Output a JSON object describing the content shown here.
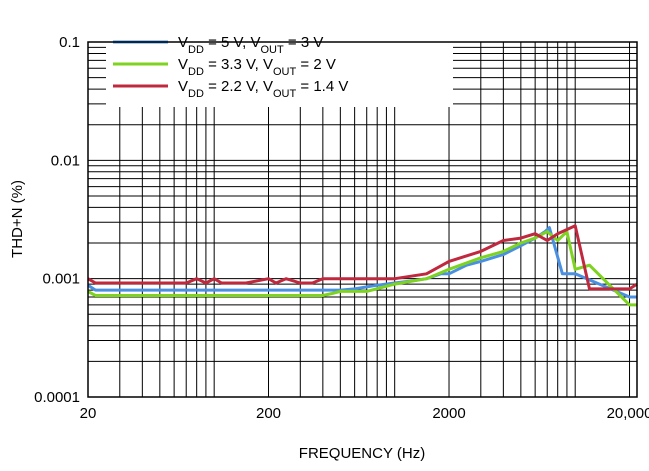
{
  "chart_data": {
    "type": "line",
    "title": "",
    "xlabel": "FREQUENCY (Hz)",
    "ylabel": "THD+N (%)",
    "x_scale": "log",
    "y_scale": "log",
    "xlim": [
      20,
      22000
    ],
    "ylim": [
      0.0001,
      0.1
    ],
    "grid": true,
    "legend_position": "top-left",
    "x_ticks": [
      {
        "value": 20,
        "label": "20"
      },
      {
        "value": 200,
        "label": "200"
      },
      {
        "value": 2000,
        "label": "2000"
      },
      {
        "value": 20000,
        "label": "20,000"
      }
    ],
    "y_ticks": [
      {
        "value": 0.1,
        "label": "0.1"
      },
      {
        "value": 0.01,
        "label": "0.01"
      },
      {
        "value": 0.001,
        "label": "0.001"
      },
      {
        "value": 0.0001,
        "label": "0.0001"
      }
    ],
    "series": [
      {
        "name_parts": [
          {
            "t": "V",
            "sub": false
          },
          {
            "t": "DD",
            "sub": true
          },
          {
            "t": " = 5 V, V",
            "sub": false
          },
          {
            "t": "OUT",
            "sub": true
          },
          {
            "t": " = 3 V",
            "sub": false
          }
        ],
        "color": "#4a90e2",
        "x": [
          20,
          22,
          30,
          50,
          100,
          200,
          400,
          500,
          600,
          800,
          1000,
          1200,
          1500,
          1800,
          2000,
          2500,
          3000,
          4000,
          5000,
          6000,
          6800,
          7200,
          8500,
          10000,
          20000,
          22000
        ],
        "y": [
          0.00088,
          0.0008,
          0.0008,
          0.0008,
          0.0008,
          0.0008,
          0.0008,
          0.0008,
          0.00082,
          0.00088,
          0.00092,
          0.00095,
          0.001,
          0.0011,
          0.0011,
          0.0013,
          0.0014,
          0.0016,
          0.0019,
          0.0022,
          0.0025,
          0.0027,
          0.0011,
          0.0011,
          0.0007,
          0.0007
        ]
      },
      {
        "name_parts": [
          {
            "t": "V",
            "sub": false
          },
          {
            "t": "DD",
            "sub": true
          },
          {
            "t": " = 3.3 V, V",
            "sub": false
          },
          {
            "t": "OUT",
            "sub": true
          },
          {
            "t": " = 2 V",
            "sub": false
          }
        ],
        "color": "#7ed321",
        "x": [
          20,
          22,
          30,
          50,
          100,
          200,
          400,
          450,
          500,
          700,
          1000,
          1500,
          2000,
          3000,
          4000,
          5000,
          6000,
          7000,
          8000,
          9000,
          10000,
          12000,
          20000,
          22000
        ],
        "y": [
          0.00078,
          0.00072,
          0.00072,
          0.00072,
          0.00072,
          0.00072,
          0.00072,
          0.00075,
          0.00078,
          0.00078,
          0.0009,
          0.001,
          0.0012,
          0.0015,
          0.0017,
          0.002,
          0.0022,
          0.0025,
          0.0021,
          0.0025,
          0.0012,
          0.0013,
          0.0006,
          0.0006
        ]
      },
      {
        "name_parts": [
          {
            "t": "V",
            "sub": false
          },
          {
            "t": "DD",
            "sub": true
          },
          {
            "t": " = 2.2 V, V",
            "sub": false
          },
          {
            "t": "OUT",
            "sub": true
          },
          {
            "t": " = 1.4 V",
            "sub": false
          }
        ],
        "color": "#c0283e",
        "x": [
          20,
          22,
          30,
          50,
          70,
          80,
          90,
          100,
          110,
          130,
          150,
          200,
          220,
          250,
          300,
          350,
          400,
          500,
          700,
          900,
          1000,
          1500,
          2000,
          3000,
          4000,
          5000,
          6000,
          7000,
          8000,
          10000,
          12000,
          14000,
          20000,
          22000
        ],
        "y": [
          0.001,
          0.00092,
          0.00092,
          0.00092,
          0.00092,
          0.001,
          0.00092,
          0.001,
          0.00092,
          0.00092,
          0.00092,
          0.001,
          0.00092,
          0.001,
          0.00092,
          0.00092,
          0.001,
          0.001,
          0.001,
          0.001,
          0.001,
          0.0011,
          0.0014,
          0.0017,
          0.0021,
          0.0022,
          0.0024,
          0.0021,
          0.0024,
          0.0028,
          0.00082,
          0.00082,
          0.00082,
          0.0009
        ]
      }
    ]
  }
}
